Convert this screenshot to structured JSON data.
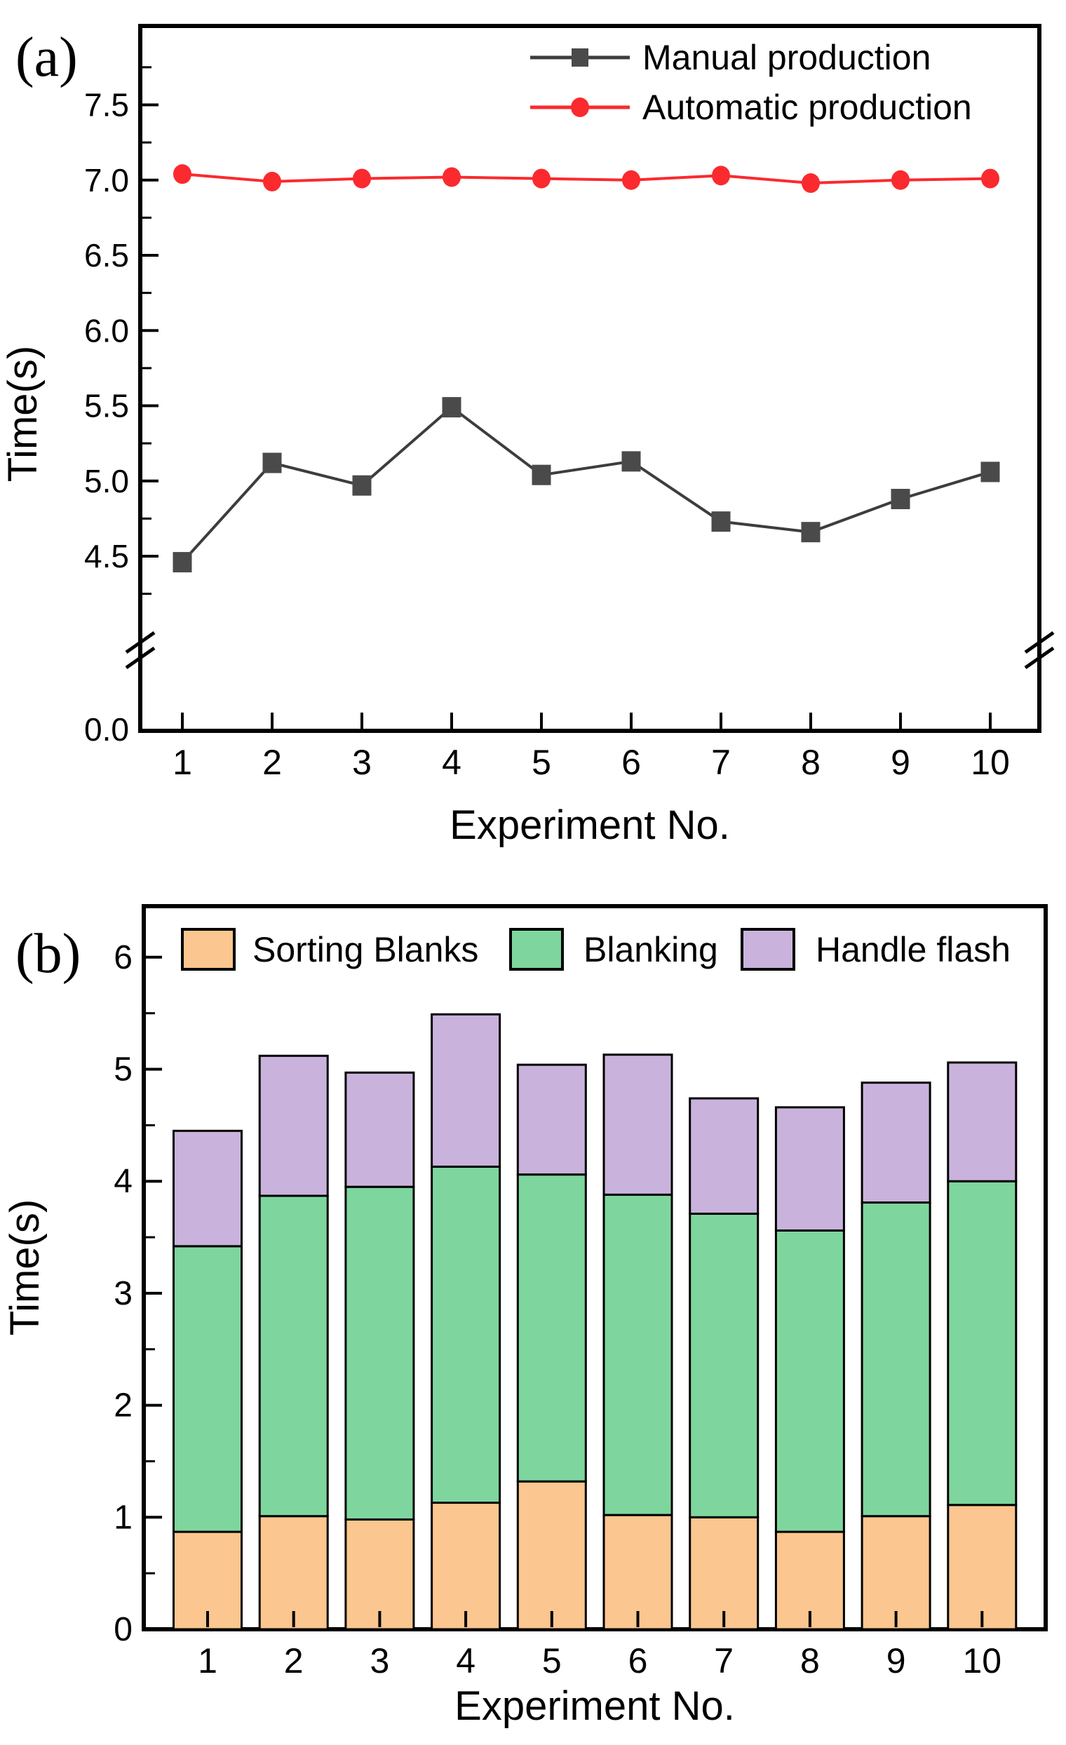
{
  "figure": {
    "background": "#ffffff",
    "panel_count": 2
  },
  "chart_data": [
    {
      "type": "line",
      "panel_label": "(a)",
      "xlabel": "Experiment No.",
      "ylabel": "Time(s)",
      "x": [
        1,
        2,
        3,
        4,
        5,
        6,
        7,
        8,
        9,
        10
      ],
      "x_tick_labels": [
        "1",
        "2",
        "3",
        "4",
        "5",
        "6",
        "7",
        "8",
        "9",
        "10"
      ],
      "y_axis": {
        "upper_ticks": [
          4.5,
          5.0,
          5.5,
          6.0,
          6.5,
          7.0,
          7.5
        ],
        "upper_tick_labels": [
          "4.5",
          "5.0",
          "5.5",
          "6.0",
          "6.5",
          "7.0",
          "7.5"
        ],
        "minor_ticks": [
          4.25,
          4.75,
          5.25,
          5.75,
          6.25,
          6.75,
          7.25,
          7.75
        ],
        "zero_tick_label": "0.0",
        "axis_break": true,
        "upper_segment_range": [
          4.2,
          7.95
        ]
      },
      "grid": false,
      "legend_position": "top-right",
      "series": [
        {
          "name": "Manual production",
          "marker": "square",
          "color": "#4a4a4a",
          "line_color": "#3d3d3d",
          "values": [
            4.46,
            5.12,
            4.97,
            5.49,
            5.04,
            5.13,
            4.73,
            4.66,
            4.88,
            5.06
          ]
        },
        {
          "name": "Automatic production",
          "marker": "circle",
          "color": "#fa2a2e",
          "line_color": "#fa2a2e",
          "values": [
            7.04,
            6.99,
            7.01,
            7.02,
            7.01,
            7.0,
            7.03,
            6.98,
            7.0,
            7.01
          ]
        }
      ]
    },
    {
      "type": "bar",
      "stacked": true,
      "panel_label": "(b)",
      "xlabel": "Experiment No.",
      "ylabel": "Time(s)",
      "categories": [
        "1",
        "2",
        "3",
        "4",
        "5",
        "6",
        "7",
        "8",
        "9",
        "10"
      ],
      "y_ticks": [
        0,
        1,
        2,
        3,
        4,
        5,
        6
      ],
      "y_tick_labels": [
        "0",
        "1",
        "2",
        "3",
        "4",
        "5",
        "6"
      ],
      "ylim": [
        0,
        6.45
      ],
      "grid": false,
      "legend_position": "top",
      "series": [
        {
          "name": "Sorting Blanks",
          "color": "#fbc68f",
          "values": [
            0.87,
            1.01,
            0.98,
            1.13,
            1.32,
            1.02,
            1.0,
            0.87,
            1.01,
            1.11
          ]
        },
        {
          "name": "Blanking",
          "color": "#7ed69e",
          "values": [
            2.55,
            2.86,
            2.97,
            3.0,
            2.74,
            2.86,
            2.71,
            2.69,
            2.8,
            2.89
          ]
        },
        {
          "name": "Handle flash",
          "color": "#c9b3dc",
          "values": [
            1.03,
            1.25,
            1.02,
            1.36,
            0.98,
            1.25,
            1.03,
            1.1,
            1.07,
            1.06
          ]
        }
      ]
    }
  ]
}
